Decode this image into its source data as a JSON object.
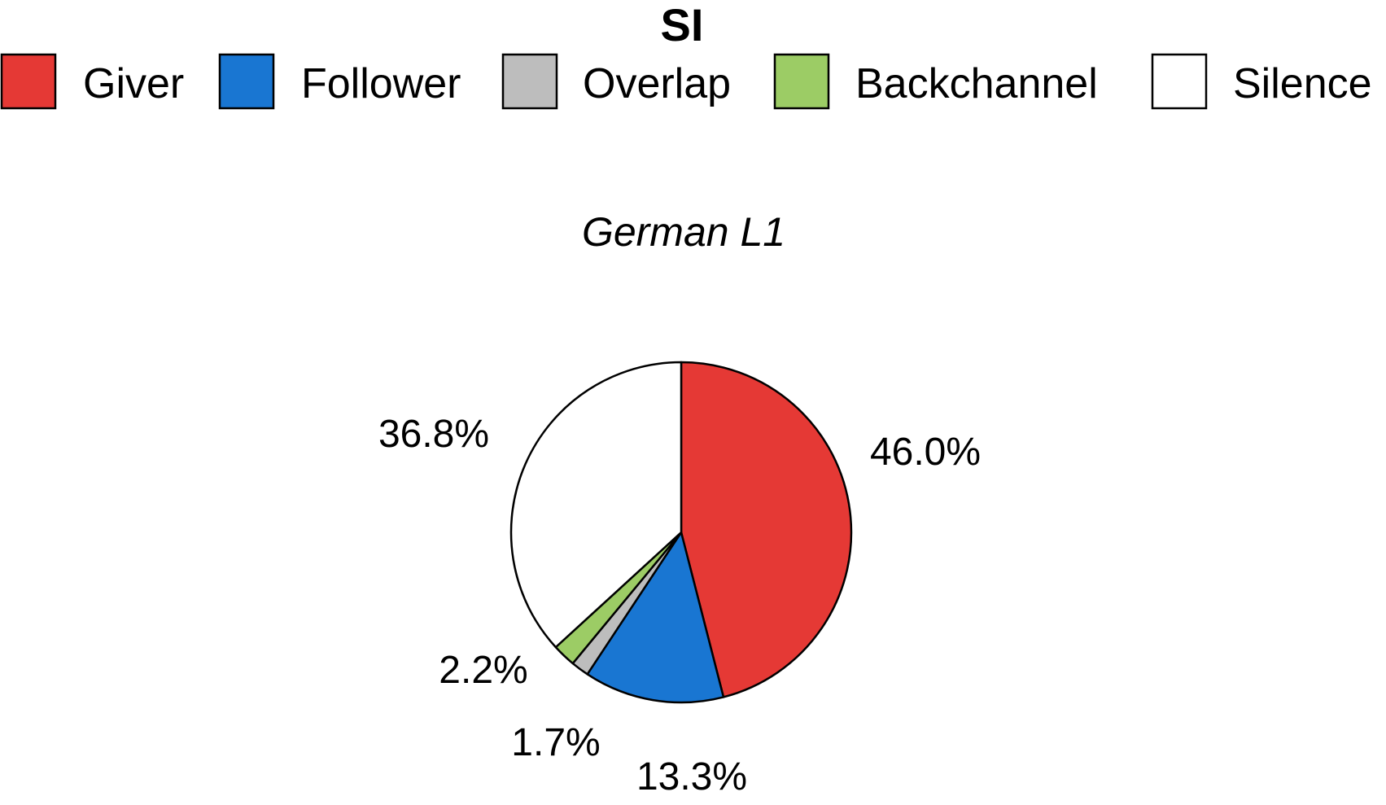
{
  "chart_data": {
    "type": "pie",
    "title": "German L1",
    "legend": {
      "title": "SI",
      "placement": "top",
      "entries": [
        "Giver",
        "Follower",
        "Overlap",
        "Backchannel",
        "Silence"
      ]
    },
    "slices": [
      {
        "label": "Giver",
        "value": 46.0,
        "display": "46.0%",
        "color": "#e53935"
      },
      {
        "label": "Follower",
        "value": 13.3,
        "display": "13.3%",
        "color": "#1976d2"
      },
      {
        "label": "Overlap",
        "value": 1.7,
        "display": "1.7%",
        "color": "#bdbdbd"
      },
      {
        "label": "Backchannel",
        "value": 2.2,
        "display": "2.2%",
        "color": "#9ccc65"
      },
      {
        "label": "Silence",
        "value": 36.8,
        "display": "36.8%",
        "color": "#ffffff"
      }
    ],
    "start_angle": "12 o'clock",
    "direction": "clockwise"
  }
}
